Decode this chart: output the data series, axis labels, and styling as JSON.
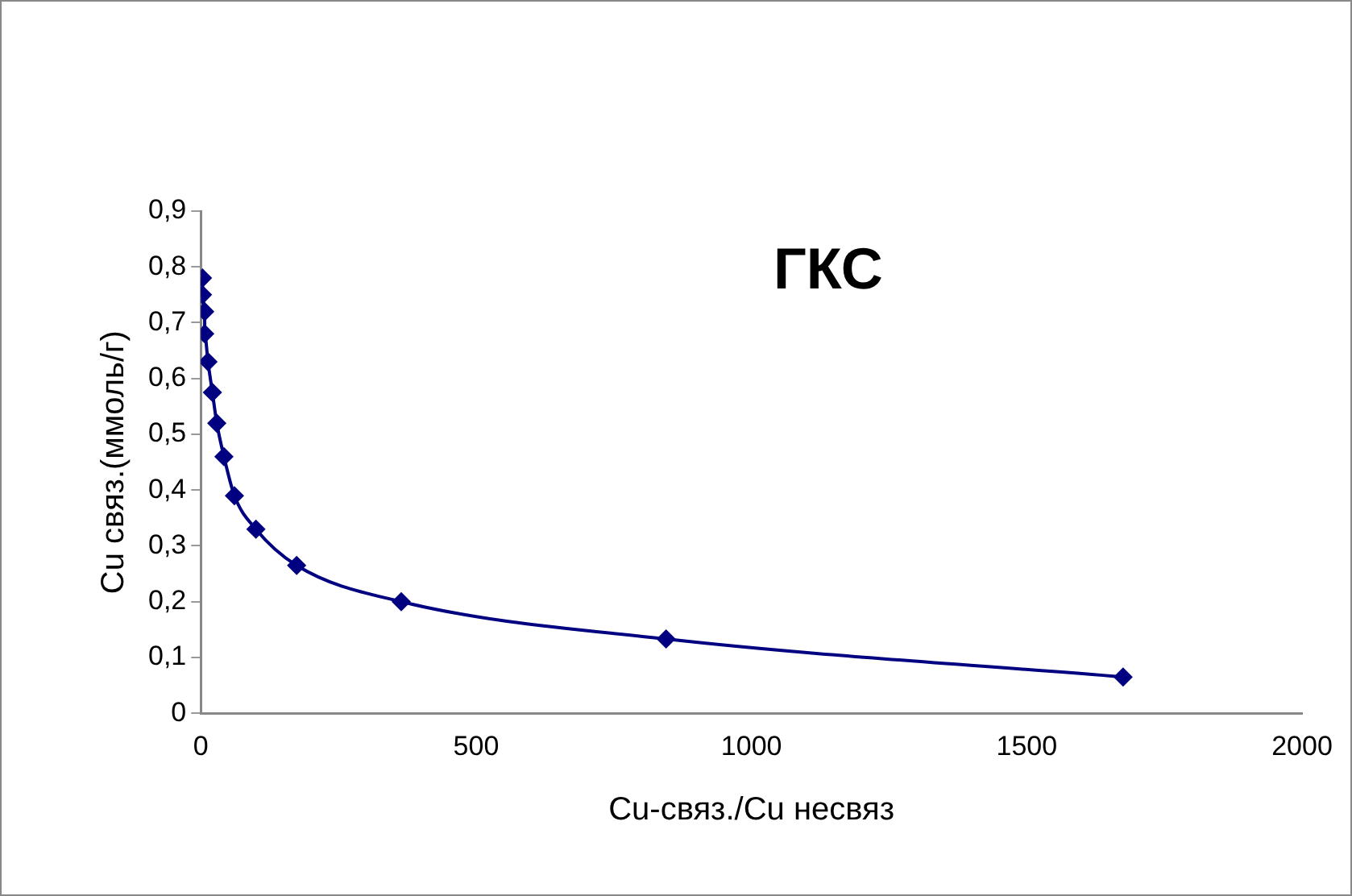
{
  "chart_data": {
    "type": "line",
    "xlabel": "Cu-связ./Cu несвяз",
    "ylabel": "Cu связ.(ммоль/г)",
    "annotations": [
      "ГКС"
    ],
    "x": [
      3,
      3,
      7,
      7,
      13,
      21,
      29,
      42,
      61,
      100,
      174,
      364,
      845,
      1675
    ],
    "series": [
      {
        "color": "#000080",
        "values": [
          0.78,
          0.75,
          0.72,
          0.68,
          0.63,
          0.575,
          0.52,
          0.46,
          0.39,
          0.33,
          0.265,
          0.2,
          0.133,
          0.065
        ]
      }
    ],
    "xlim": [
      0,
      2000
    ],
    "xticks": [
      0,
      500,
      1000,
      1500,
      2000
    ],
    "ylim": [
      0,
      0.9
    ],
    "yticks": [
      0,
      {
        "value": 0.1,
        "label": "0,1"
      },
      {
        "value": 0.2,
        "label": "0,2"
      },
      {
        "value": 0.3,
        "label": "0,3"
      },
      {
        "value": 0.4,
        "label": "0,4"
      },
      {
        "value": 0.5,
        "label": "0,5"
      },
      {
        "value": 0.6,
        "label": "0,6"
      },
      {
        "value": 0.7,
        "label": "0,7"
      },
      {
        "value": 0.8,
        "label": "0,8"
      },
      {
        "value": 0.9,
        "label": "0,9"
      }
    ],
    "grid": false,
    "legend": false,
    "marker": "diamond",
    "line_style": "solid"
  }
}
